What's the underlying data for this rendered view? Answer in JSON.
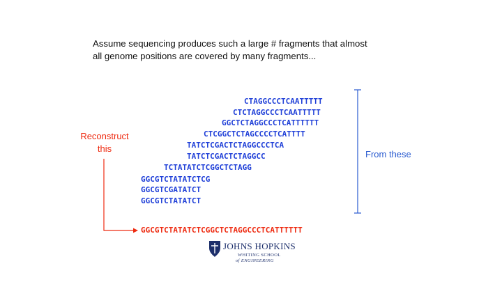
{
  "intro": {
    "line1": "Assume sequencing produces such a large # fragments that almost",
    "line2": "all genome positions are covered by many fragments..."
  },
  "fragments": [
    "CTAGGCCCTCAATTTTT",
    "CTCTAGGCCCTCAATTTTT",
    "GGCTCTAGGCCCTCATTTTTT",
    "CTCGGCTCTAGCCCCTCATTTT",
    "TATCTCGACTCTAGGCCCTCA",
    "TATCTCGACTCTAGGCC",
    "TCTATATCTCGGCTCTAGG",
    "GGCGTCTATATCTCG",
    "GGCGTCGATATCT",
    "GGCGTCTATATCT"
  ],
  "reconstruct_label": "Reconstruct this",
  "from_label": "From these",
  "genome": "GGCGTCTATATCTCGGCTCTAGGCCCTCATTTTTT",
  "logo": {
    "name": "JOHNS HOPKINS",
    "sub1": "WHITING SCHOOL",
    "sub2": "of ENGINEERING"
  },
  "colors": {
    "fragment": "#1f3fd8",
    "genome": "#ee2a10",
    "bracket": "#2a5bd0"
  }
}
